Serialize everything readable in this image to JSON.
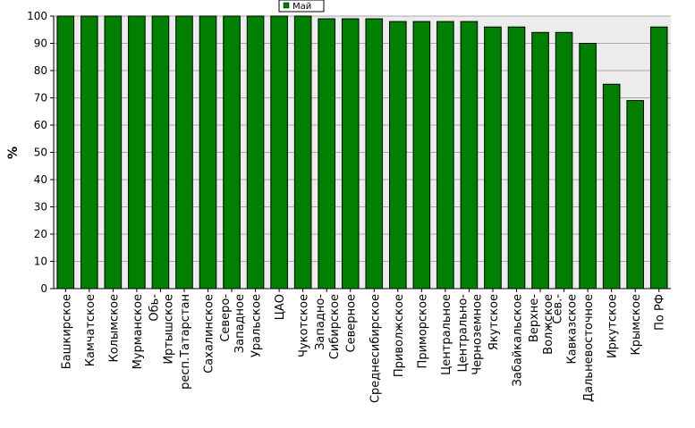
{
  "chart_data": {
    "type": "bar",
    "ylabel": "%",
    "ylim": [
      0,
      100
    ],
    "yticks": [
      0,
      10,
      20,
      30,
      40,
      50,
      60,
      70,
      80,
      90,
      100
    ],
    "grid": true,
    "legend": "top-center",
    "categories": [
      [
        "Башкирское"
      ],
      [
        "Камчатское"
      ],
      [
        "Колымское"
      ],
      [
        "Мурманское"
      ],
      [
        "Обь-",
        "Иртышское"
      ],
      [
        "респ.Татарстан"
      ],
      [
        "Сахалинское"
      ],
      [
        "Северо-",
        "Западное"
      ],
      [
        "Уральское"
      ],
      [
        "ЦАО"
      ],
      [
        "Чукотское"
      ],
      [
        "Западно-",
        "Сибирское"
      ],
      [
        "Северное"
      ],
      [
        "Среднесибирское"
      ],
      [
        "Приволжское"
      ],
      [
        "Приморское"
      ],
      [
        "Центральное"
      ],
      [
        "Центрально-",
        "Черноземное"
      ],
      [
        "Якутское"
      ],
      [
        "Забайкальское"
      ],
      [
        "Верхне-",
        "Волжское"
      ],
      [
        "Сев.-",
        "Кавказское"
      ],
      [
        "Дальневосточное"
      ],
      [
        "Иркутское"
      ],
      [
        "Крымское"
      ],
      [
        "По РФ"
      ]
    ],
    "series": [
      {
        "name": "Май",
        "color": "#008000",
        "values": [
          100,
          100,
          100,
          100,
          100,
          100,
          100,
          100,
          100,
          100,
          100,
          99,
          99,
          99,
          98,
          98,
          98,
          98,
          96,
          96,
          94,
          94,
          90,
          75,
          69,
          96
        ]
      }
    ]
  }
}
